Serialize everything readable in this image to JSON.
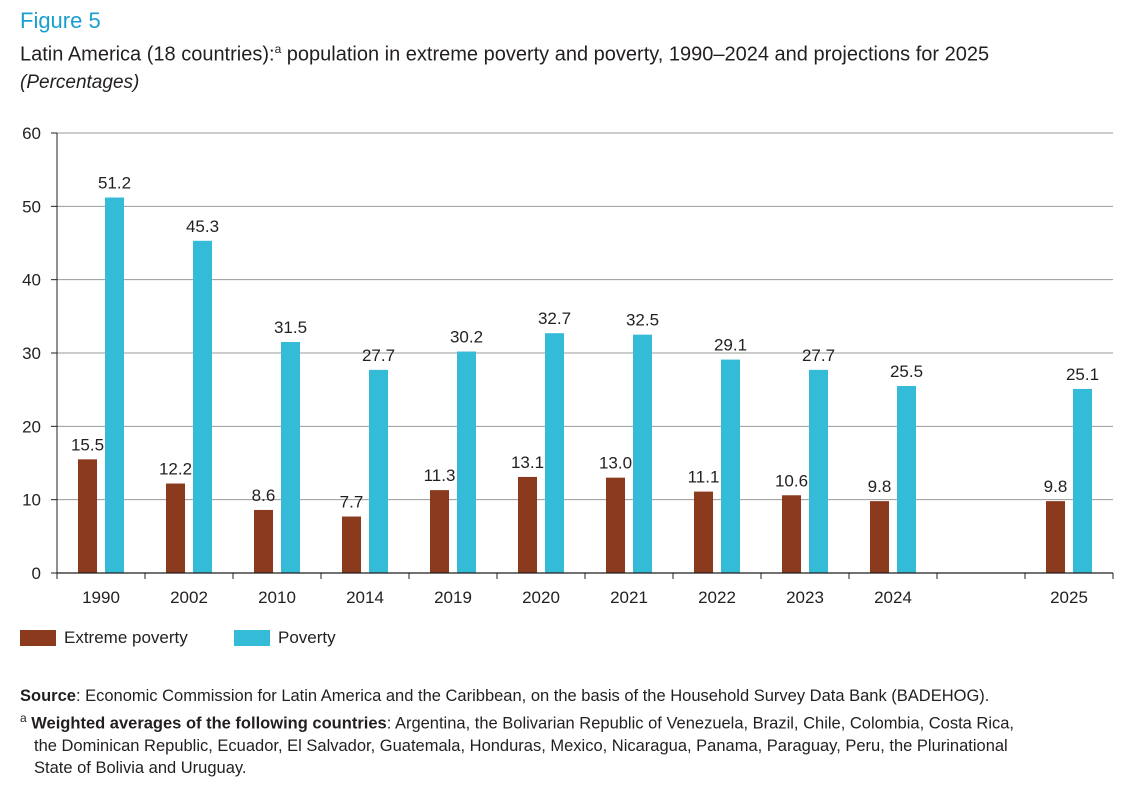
{
  "figure_label": "Figure 5",
  "title_main": "Latin America (18 countries):",
  "title_sup": "a",
  "title_rest": " population in extreme poverty and poverty, 1990–2024 and projections for 2025",
  "subtitle": "(Percentages)",
  "colors": {
    "extreme": "#8b3a1e",
    "poverty": "#33bbd8",
    "grid": "#9a9a9a",
    "axis": "#231f20"
  },
  "chart_data": {
    "type": "bar",
    "title": "Latin America (18 countries): population in extreme poverty and poverty, 1990–2024 and projections for 2025",
    "ylabel": "(Percentages)",
    "xlabel": "",
    "ylim": [
      0,
      60
    ],
    "yticks": [
      "0",
      "10",
      "20",
      "30",
      "40",
      "50",
      "60"
    ],
    "categories": [
      "1990",
      "2002",
      "2010",
      "2014",
      "2019",
      "2020",
      "2021",
      "2022",
      "2023",
      "2024",
      "",
      "2025"
    ],
    "series": [
      {
        "name": "Extreme poverty",
        "values": [
          15.5,
          12.2,
          8.6,
          7.7,
          11.3,
          13.1,
          13.0,
          11.1,
          10.6,
          9.8,
          null,
          9.8
        ],
        "labels": [
          "15.5",
          "12.2",
          "8.6",
          "7.7",
          "11.3",
          "13.1",
          "13.0",
          "11.1",
          "10.6",
          "9.8",
          "",
          "9.8"
        ]
      },
      {
        "name": "Poverty",
        "values": [
          51.2,
          45.3,
          31.5,
          27.7,
          30.2,
          32.7,
          32.5,
          29.1,
          27.7,
          25.5,
          null,
          25.1
        ],
        "labels": [
          "51.2",
          "45.3",
          "31.5",
          "27.7",
          "30.2",
          "32.7",
          "32.5",
          "29.1",
          "27.7",
          "25.5",
          "",
          "25.1"
        ]
      }
    ],
    "legend_position": "bottom-left",
    "grid": true
  },
  "legend": {
    "extreme_label": "Extreme poverty",
    "poverty_label": "Poverty"
  },
  "notes": {
    "source_label": "Source",
    "source_text": ":  Economic Commission for Latin America and the Caribbean, on the basis of the Household Survey Data Bank (BADEHOG).",
    "footnote_mark": "a",
    "footnote_bold": " Weighted averages of the following countries",
    "footnote_text1": ": Argentina, the Bolivarian Republic of Venezuela, Brazil, Chile, Colombia, Costa Rica,",
    "footnote_text2": "the Dominican Republic, Ecuador, El Salvador, Guatemala, Honduras, Mexico, Nicaragua, Panama, Paraguay, Peru, the Plurinational",
    "footnote_text3": "State of Bolivia and Uruguay."
  }
}
